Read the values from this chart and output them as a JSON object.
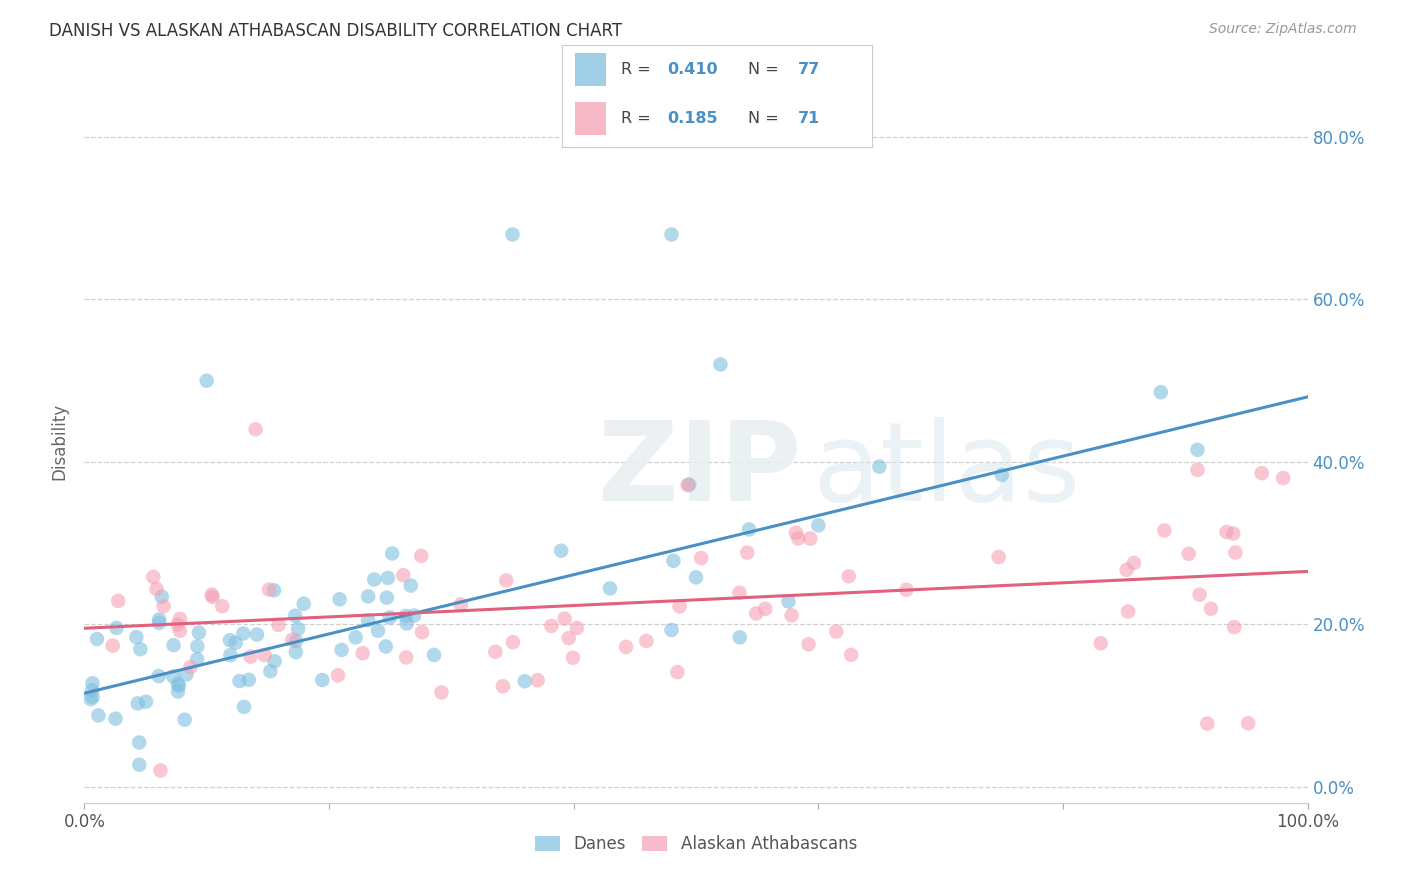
{
  "title": "DANISH VS ALASKAN ATHABASCAN DISABILITY CORRELATION CHART",
  "source": "Source: ZipAtlas.com",
  "ylabel": "Disability",
  "xlim": [
    0.0,
    1.0
  ],
  "ylim": [
    -0.02,
    0.87
  ],
  "x_ticks": [
    0.0,
    0.2,
    0.4,
    0.6,
    0.8,
    1.0
  ],
  "x_tick_labels": [
    "0.0%",
    "",
    "",
    "",
    "",
    "100.0%"
  ],
  "y_ticks": [
    0.0,
    0.2,
    0.4,
    0.6,
    0.8
  ],
  "y_tick_labels_right": [
    "0.0%",
    "20.0%",
    "40.0%",
    "60.0%",
    "80.0%"
  ],
  "danes_color": "#7fbfdf",
  "athabascan_color": "#f5a0b5",
  "danes_line_color": "#4a90c4",
  "athabascan_line_color": "#e0607e",
  "danes_R": "0.410",
  "danes_N": "77",
  "athabascan_R": "0.185",
  "athabascan_N": "71",
  "legend_color_R": "#4a90c4",
  "legend_color_N": "#4a90c4",
  "background_color": "#ffffff",
  "grid_color": "#d0d0d0",
  "danes_line_x0": 0.0,
  "danes_line_y0": 0.115,
  "danes_line_x1": 1.0,
  "danes_line_y1": 0.48,
  "ath_line_x0": 0.0,
  "ath_line_y0": 0.195,
  "ath_line_x1": 1.0,
  "ath_line_y1": 0.265
}
